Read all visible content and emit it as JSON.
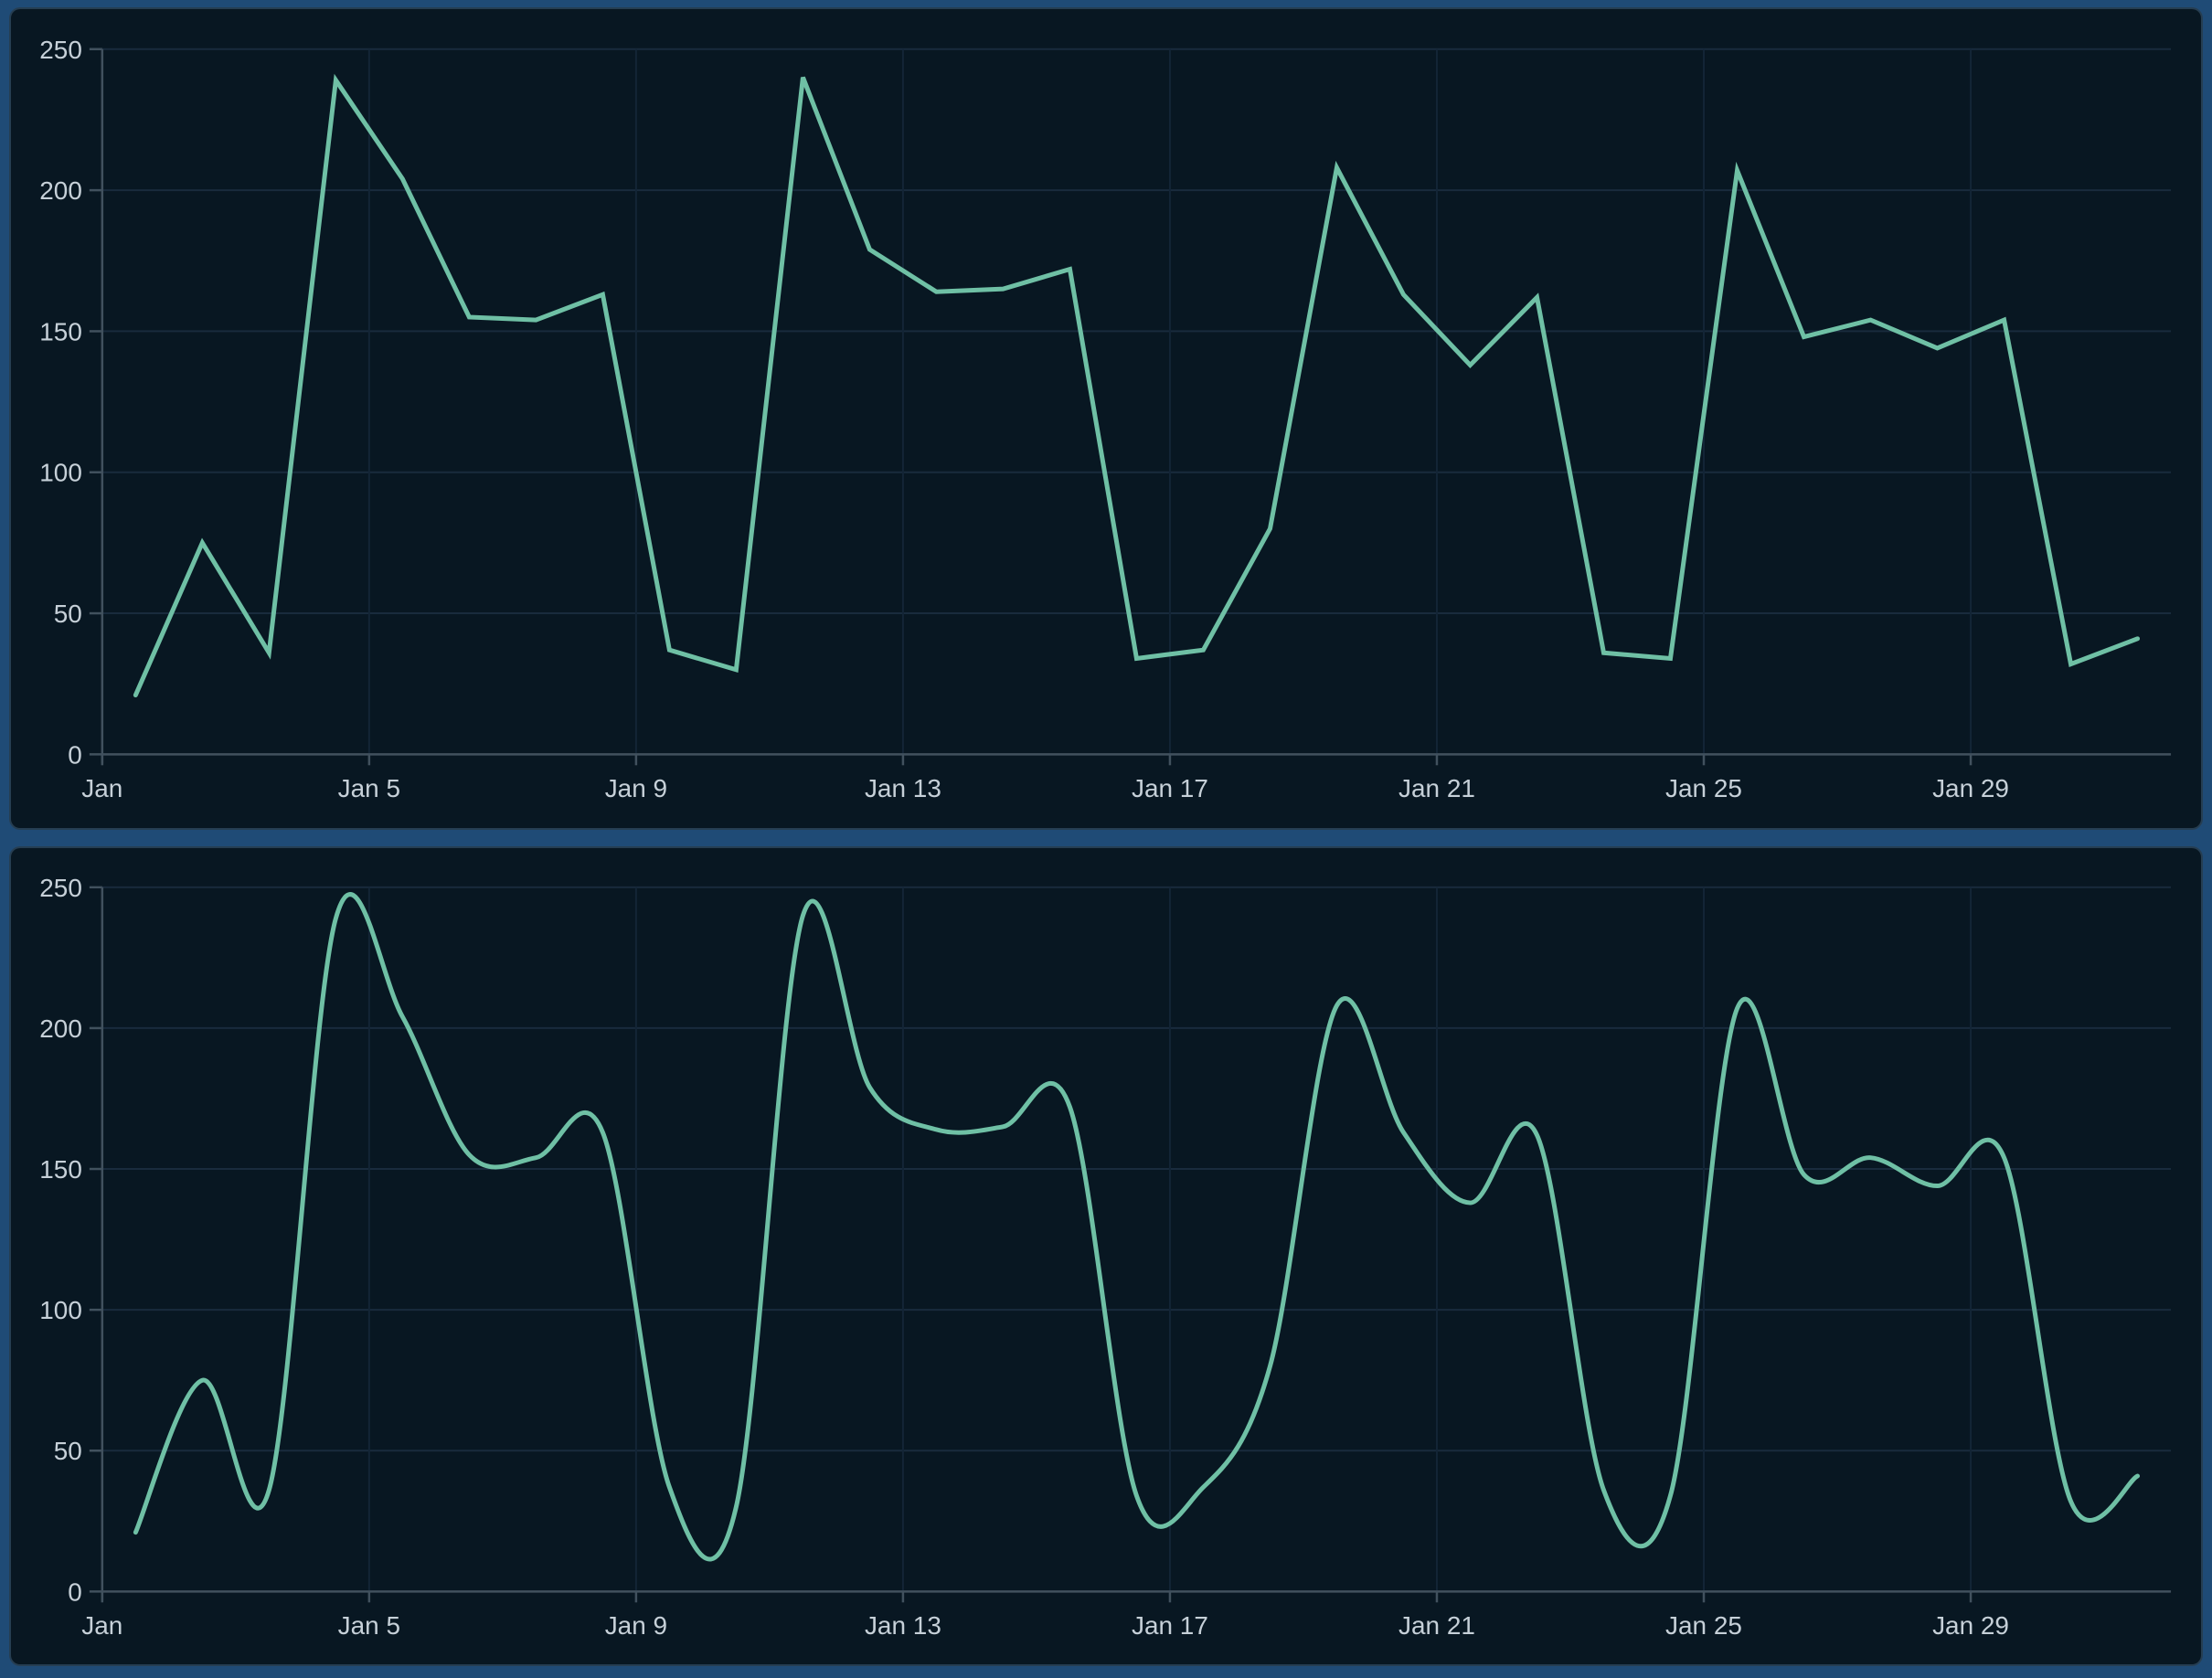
{
  "colors": {
    "page_background": "#1F4B76",
    "panel_background": "#081722",
    "line": "#6FC0A5",
    "grid_horizontal": "#192B3D",
    "grid_vertical": "#132536",
    "axis": "#41515E",
    "tick_label": "#C6D0D8"
  },
  "chart_data": [
    {
      "type": "line",
      "line_shape": "linear",
      "title": "",
      "xlabel": "",
      "ylabel": "",
      "x": [
        "Jan 1",
        "Jan 2",
        "Jan 3",
        "Jan 4",
        "Jan 5",
        "Jan 6",
        "Jan 7",
        "Jan 8",
        "Jan 9",
        "Jan 10",
        "Jan 11",
        "Jan 12",
        "Jan 13",
        "Jan 14",
        "Jan 15",
        "Jan 16",
        "Jan 17",
        "Jan 18",
        "Jan 19",
        "Jan 20",
        "Jan 21",
        "Jan 22",
        "Jan 23",
        "Jan 24",
        "Jan 25",
        "Jan 26",
        "Jan 27",
        "Jan 28",
        "Jan 29",
        "Jan 30",
        "Jan 31"
      ],
      "series": [
        {
          "values": [
            21,
            75,
            36,
            239,
            204,
            155,
            154,
            163,
            37,
            30,
            240,
            179,
            164,
            165,
            172,
            34,
            37,
            80,
            208,
            163,
            138,
            162,
            36,
            34,
            207,
            148,
            154,
            144,
            154,
            32,
            41
          ]
        }
      ],
      "ylim": [
        0,
        250
      ],
      "y_ticks": [
        0,
        50,
        100,
        150,
        200,
        250
      ],
      "x_tick_positions": [
        1,
        5,
        9,
        13,
        17,
        21,
        25,
        29
      ],
      "x_tick_labels": [
        "Jan",
        "Jan 5",
        "Jan 9",
        "Jan 13",
        "Jan 17",
        "Jan 21",
        "Jan 25",
        "Jan 29"
      ],
      "grid": true,
      "legend": false
    },
    {
      "type": "line",
      "line_shape": "spline",
      "title": "",
      "xlabel": "",
      "ylabel": "",
      "x": [
        "Jan 1",
        "Jan 2",
        "Jan 3",
        "Jan 4",
        "Jan 5",
        "Jan 6",
        "Jan 7",
        "Jan 8",
        "Jan 9",
        "Jan 10",
        "Jan 11",
        "Jan 12",
        "Jan 13",
        "Jan 14",
        "Jan 15",
        "Jan 16",
        "Jan 17",
        "Jan 18",
        "Jan 19",
        "Jan 20",
        "Jan 21",
        "Jan 22",
        "Jan 23",
        "Jan 24",
        "Jan 25",
        "Jan 26",
        "Jan 27",
        "Jan 28",
        "Jan 29",
        "Jan 30",
        "Jan 31"
      ],
      "series": [
        {
          "values": [
            21,
            75,
            36,
            239,
            204,
            155,
            154,
            163,
            37,
            30,
            240,
            179,
            164,
            165,
            172,
            34,
            37,
            80,
            208,
            163,
            138,
            162,
            36,
            34,
            207,
            148,
            154,
            144,
            154,
            32,
            41
          ]
        }
      ],
      "ylim": [
        0,
        250
      ],
      "y_ticks": [
        0,
        50,
        100,
        150,
        200,
        250
      ],
      "x_tick_positions": [
        1,
        5,
        9,
        13,
        17,
        21,
        25,
        29
      ],
      "x_tick_labels": [
        "Jan",
        "Jan 5",
        "Jan 9",
        "Jan 13",
        "Jan 17",
        "Jan 21",
        "Jan 25",
        "Jan 29"
      ],
      "grid": true,
      "legend": false
    }
  ]
}
